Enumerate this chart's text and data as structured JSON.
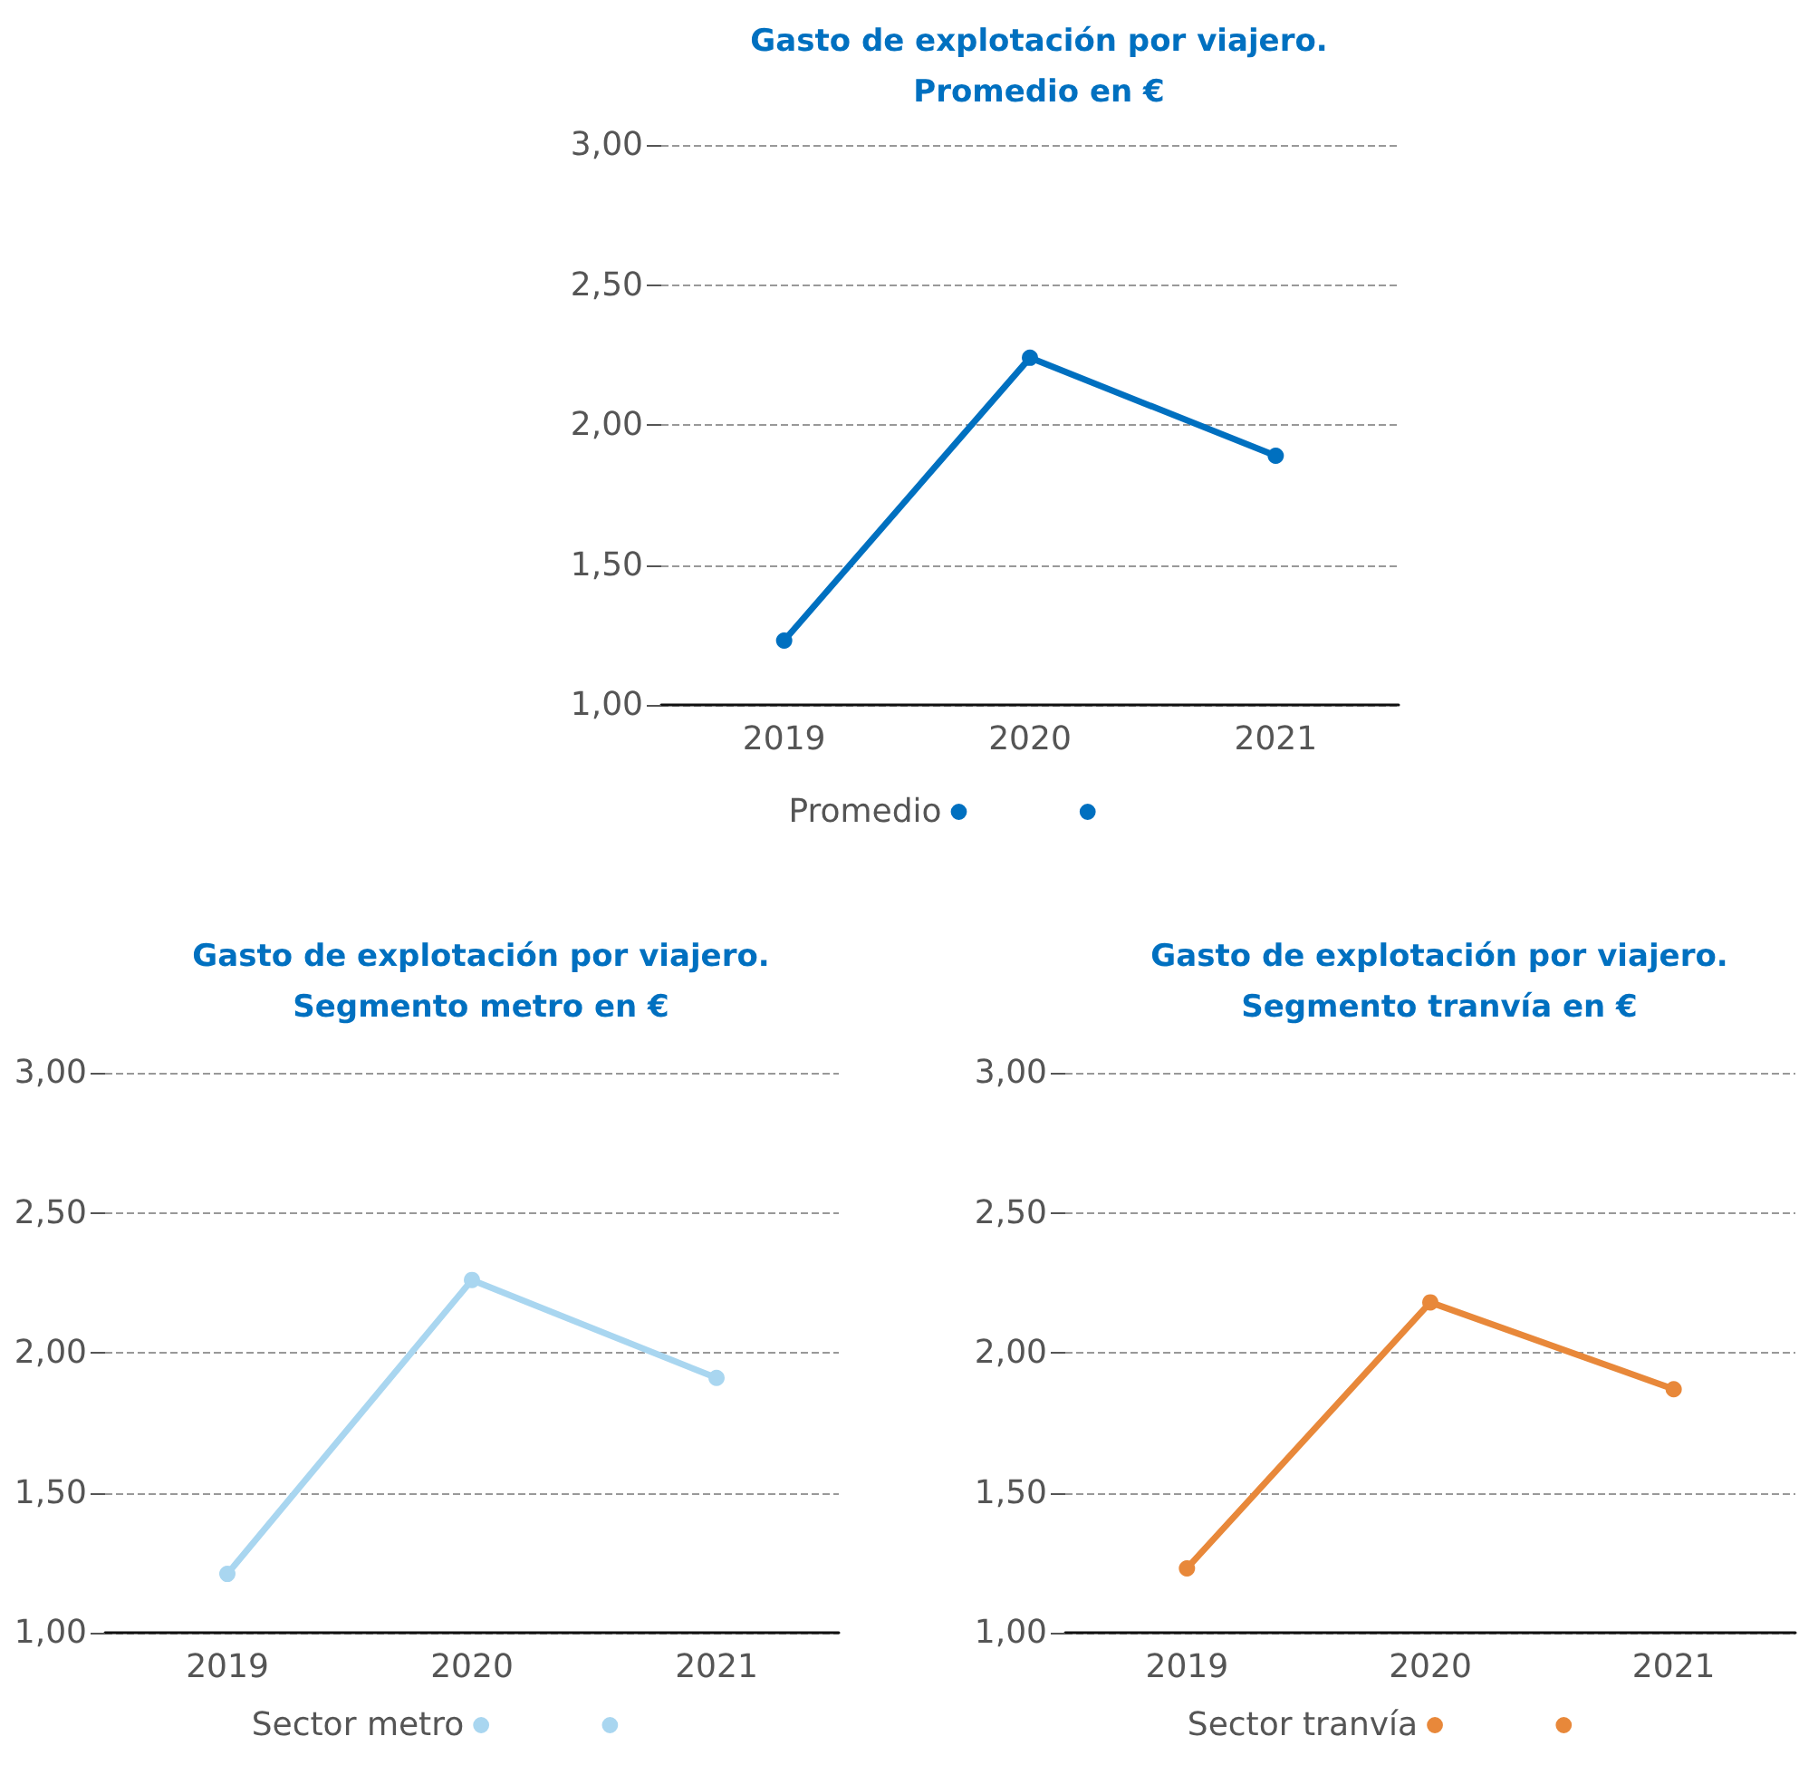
{
  "chart_data": [
    {
      "type": "line",
      "title": "Gasto de explotación por viajero.\nPromedio en €",
      "categories": [
        "2019",
        "2020",
        "2021"
      ],
      "series": [
        {
          "name": "Promedio",
          "color": "#0070c0",
          "values": [
            1.23,
            2.24,
            1.89
          ]
        }
      ],
      "ylim": [
        1,
        3
      ],
      "yticks": [
        {
          "value": 1,
          "label": "1,00"
        },
        {
          "value": 1.5,
          "label": "1,50"
        },
        {
          "value": 2,
          "label": "2,00"
        },
        {
          "value": 2.5,
          "label": "2,50"
        },
        {
          "value": 3,
          "label": "3,00"
        }
      ],
      "grid": "y",
      "legend": "bottom",
      "marker": "circle",
      "line_style": "solid"
    },
    {
      "type": "line",
      "title": "Gasto de explotación por viajero.\nSegmento metro en €",
      "categories": [
        "2019",
        "2020",
        "2021"
      ],
      "series": [
        {
          "name": "Sector metro",
          "color": "#a9d6f0",
          "values": [
            1.21,
            2.26,
            1.91
          ]
        }
      ],
      "ylim": [
        1,
        3
      ],
      "yticks": [
        {
          "value": 1,
          "label": "1,00"
        },
        {
          "value": 1.5,
          "label": "1,50"
        },
        {
          "value": 2,
          "label": "2,00"
        },
        {
          "value": 2.5,
          "label": "2,50"
        },
        {
          "value": 3,
          "label": "3,00"
        }
      ],
      "grid": "y",
      "legend": "bottom",
      "marker": "circle",
      "line_style": "solid"
    },
    {
      "type": "line",
      "title": "Gasto de explotación por viajero.\nSegmento tranvía en €",
      "categories": [
        "2019",
        "2020",
        "2021"
      ],
      "series": [
        {
          "name": "Sector tranvía",
          "color": "#e8883a",
          "values": [
            1.23,
            2.18,
            1.87
          ]
        }
      ],
      "ylim": [
        1,
        3
      ],
      "yticks": [
        {
          "value": 1,
          "label": "1,00"
        },
        {
          "value": 1.5,
          "label": "1,50"
        },
        {
          "value": 2,
          "label": "2,00"
        },
        {
          "value": 2.5,
          "label": "2,50"
        },
        {
          "value": 3,
          "label": "3,00"
        }
      ],
      "grid": "y",
      "legend": "bottom",
      "marker": "circle",
      "line_style": "solid"
    }
  ]
}
